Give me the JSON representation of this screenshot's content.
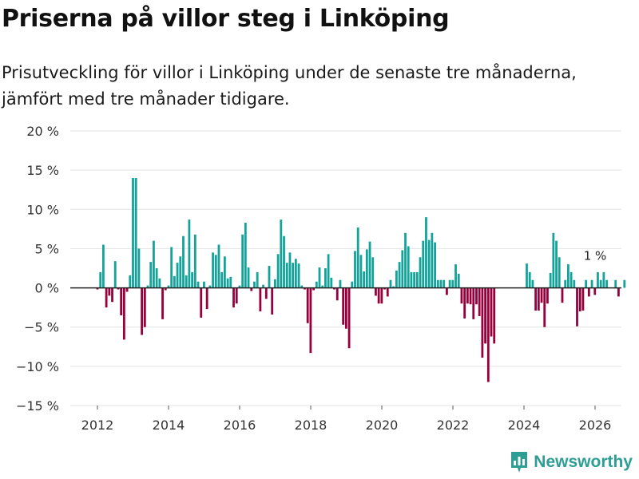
{
  "title": "Priserna på villor steg i Linköping",
  "subtitle": "Prisutveckling för villor i Linköping under de senaste tre månaderna, jämfört med tre månader tidigare.",
  "brand": {
    "name": "Newsworthy"
  },
  "colors": {
    "positive": "#14a39a",
    "negative": "#96003c",
    "grid": "#e3e3e3",
    "axis": "#222222",
    "brand": "#2e9e95"
  },
  "chart_data": {
    "type": "bar",
    "title": "Priserna på villor steg i Linköping",
    "xlabel": "",
    "ylabel": "",
    "ylim": [
      -15,
      20
    ],
    "xlim": [
      2011,
      2026.75
    ],
    "y_ticks": [
      20,
      15,
      10,
      5,
      0,
      -5,
      -10,
      -15
    ],
    "y_tick_labels": [
      "20 %",
      "15 %",
      "10 %",
      "5 %",
      "0 %",
      "−5 %",
      "−10 %",
      "−15 %"
    ],
    "x_ticks": [
      2012,
      2014,
      2016,
      2018,
      2020,
      2022,
      2024,
      2026
    ],
    "x_tick_labels": [
      "2012",
      "2014",
      "2016",
      "2018",
      "2020",
      "2022",
      "2024",
      "2026"
    ],
    "annotation": {
      "text": "1 %",
      "x": 2026.0,
      "value": 1
    },
    "series": [
      {
        "name": "Prisutveckling",
        "start": 2012.0,
        "step": 0.0833,
        "values": [
          -0.2,
          2,
          5.5,
          -2.5,
          -1,
          -1.8,
          3.4,
          -0.2,
          -3.5,
          -6.6,
          -0.5,
          1.6,
          14,
          14,
          5,
          -6,
          -5,
          0.3,
          3.3,
          6,
          2.5,
          1.2,
          -4,
          -0.3,
          0.3,
          5.2,
          1.5,
          3.2,
          4,
          6.6,
          1.6,
          8.7,
          2,
          6.8,
          0.8,
          -3.8,
          0.8,
          -2.7,
          0.3,
          4.5,
          4.2,
          5.5,
          2,
          4,
          1.2,
          1.4,
          -2.5,
          -2,
          0.3,
          6.8,
          8.3,
          2.6,
          -0.4,
          0.8,
          2,
          -3,
          0.4,
          -1.4,
          2.8,
          -3.4,
          1.1,
          4.3,
          8.7,
          6.6,
          3.2,
          4.5,
          3.2,
          3.7,
          3.1,
          0.3,
          -0.2,
          -4.5,
          -8.3,
          -0.3,
          0.8,
          2.6,
          0.3,
          2.5,
          4.3,
          1.3,
          -0.2,
          -1.6,
          1,
          -4.7,
          -5.2,
          -7.7,
          0.8,
          4.7,
          7.7,
          4.2,
          2.1,
          4.9,
          5.9,
          3.9,
          -1,
          -2,
          -2,
          -0.2,
          -1.1,
          1,
          0.2,
          2.2,
          3.3,
          4.8,
          7,
          5.3,
          2,
          2,
          2,
          3.9,
          6,
          9,
          6.1,
          7,
          5.8,
          1,
          1,
          1,
          -0.9,
          1,
          1,
          3,
          1.8,
          -2,
          -3.9,
          -2,
          -2.1,
          -4,
          -2.1,
          -3.6,
          -8.9,
          -7.1,
          -12,
          -6.2,
          -7.1,
          0,
          0,
          0,
          0,
          0,
          0,
          0,
          0,
          0,
          0,
          3.1,
          2,
          1,
          -2.9,
          -2.9,
          -1.9,
          -5,
          -2,
          1.9,
          7,
          6,
          3.9,
          -1.9,
          1,
          3,
          2,
          1,
          -4.9,
          -3,
          -2.9,
          1,
          -1.1,
          1,
          -0.9,
          2,
          1,
          2,
          1,
          0,
          0,
          1,
          -1.1,
          0,
          1
        ]
      }
    ]
  }
}
